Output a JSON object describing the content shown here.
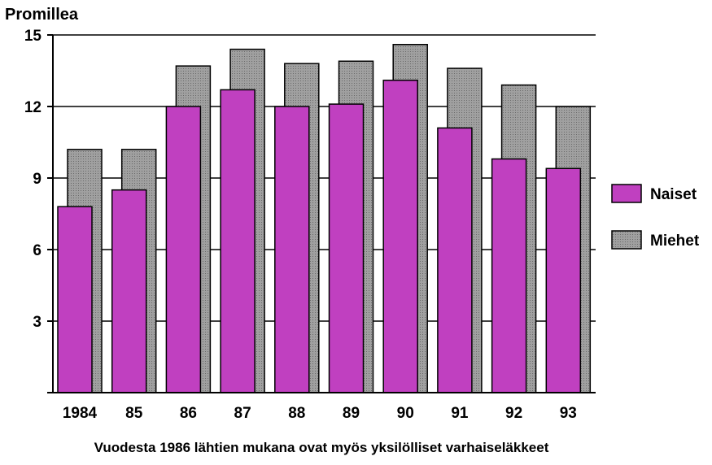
{
  "chart_data": {
    "type": "bar",
    "ylabel": "Promillea",
    "caption": "Vuodesta 1986 lähtien mukana ovat myös yksilölliset varhaiseläkkeet",
    "categories": [
      "1984",
      "85",
      "86",
      "87",
      "88",
      "89",
      "90",
      "91",
      "92",
      "93"
    ],
    "y_ticks": [
      "3",
      "6",
      "9",
      "12",
      "15"
    ],
    "ylim": [
      0,
      15
    ],
    "grid": true,
    "legend_position": "right",
    "series": [
      {
        "name": "Naiset",
        "color": "#c040c0",
        "values": [
          7.8,
          8.5,
          12.0,
          12.7,
          12.0,
          12.1,
          13.1,
          11.1,
          9.8,
          9.4
        ]
      },
      {
        "name": "Miehet",
        "color": "#9a9a9a",
        "values": [
          10.2,
          10.2,
          13.7,
          14.4,
          13.8,
          13.9,
          14.6,
          13.6,
          12.9,
          12.0
        ]
      }
    ]
  }
}
